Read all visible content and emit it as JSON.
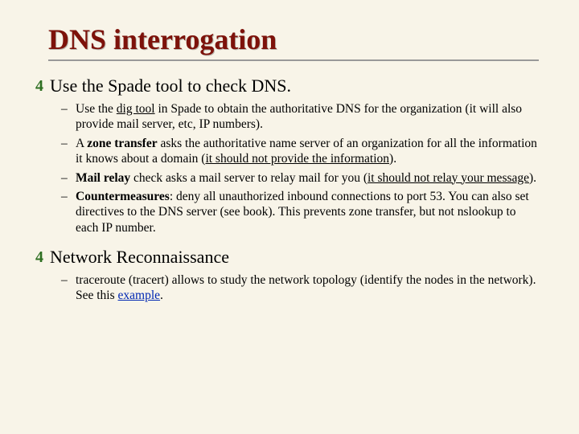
{
  "title": "DNS interrogation",
  "section1": {
    "bullet": "Use the  Spade tool to check DNS.",
    "items": [
      {
        "pre": "Use the ",
        "u1": "dig tool",
        "post1": " in Spade to obtain the authoritative DNS for the organization (it will also provide mail server, etc, IP numbers)."
      },
      {
        "pre": "A ",
        "b1": "zone transfer",
        "mid": " asks the authoritative name server of an organization for all the information it knows about a domain (",
        "u1": "it should not provide the information",
        "post": ")."
      },
      {
        "b1": "Mail relay",
        "mid": " check asks a mail server to relay mail for you (",
        "u1": "it should not relay your message",
        "post": ")."
      },
      {
        "b1": "Countermeasures",
        "post": ": deny all unauthorized inbound connections to port 53. You can also set directives to the DNS server (see book). This prevents zone transfer, but not nslookup to each IP number."
      }
    ]
  },
  "section2": {
    "bullet": "Network Reconnaissance",
    "items": [
      {
        "pre": "traceroute (tracert) allows to study the network topology (identify the nodes in the network). See this ",
        "link": "example",
        "post": "."
      }
    ]
  },
  "colors": {
    "title": "#7d120a",
    "check": "#2e6f22",
    "link": "#0027b3",
    "background": "#f8f4e8"
  }
}
